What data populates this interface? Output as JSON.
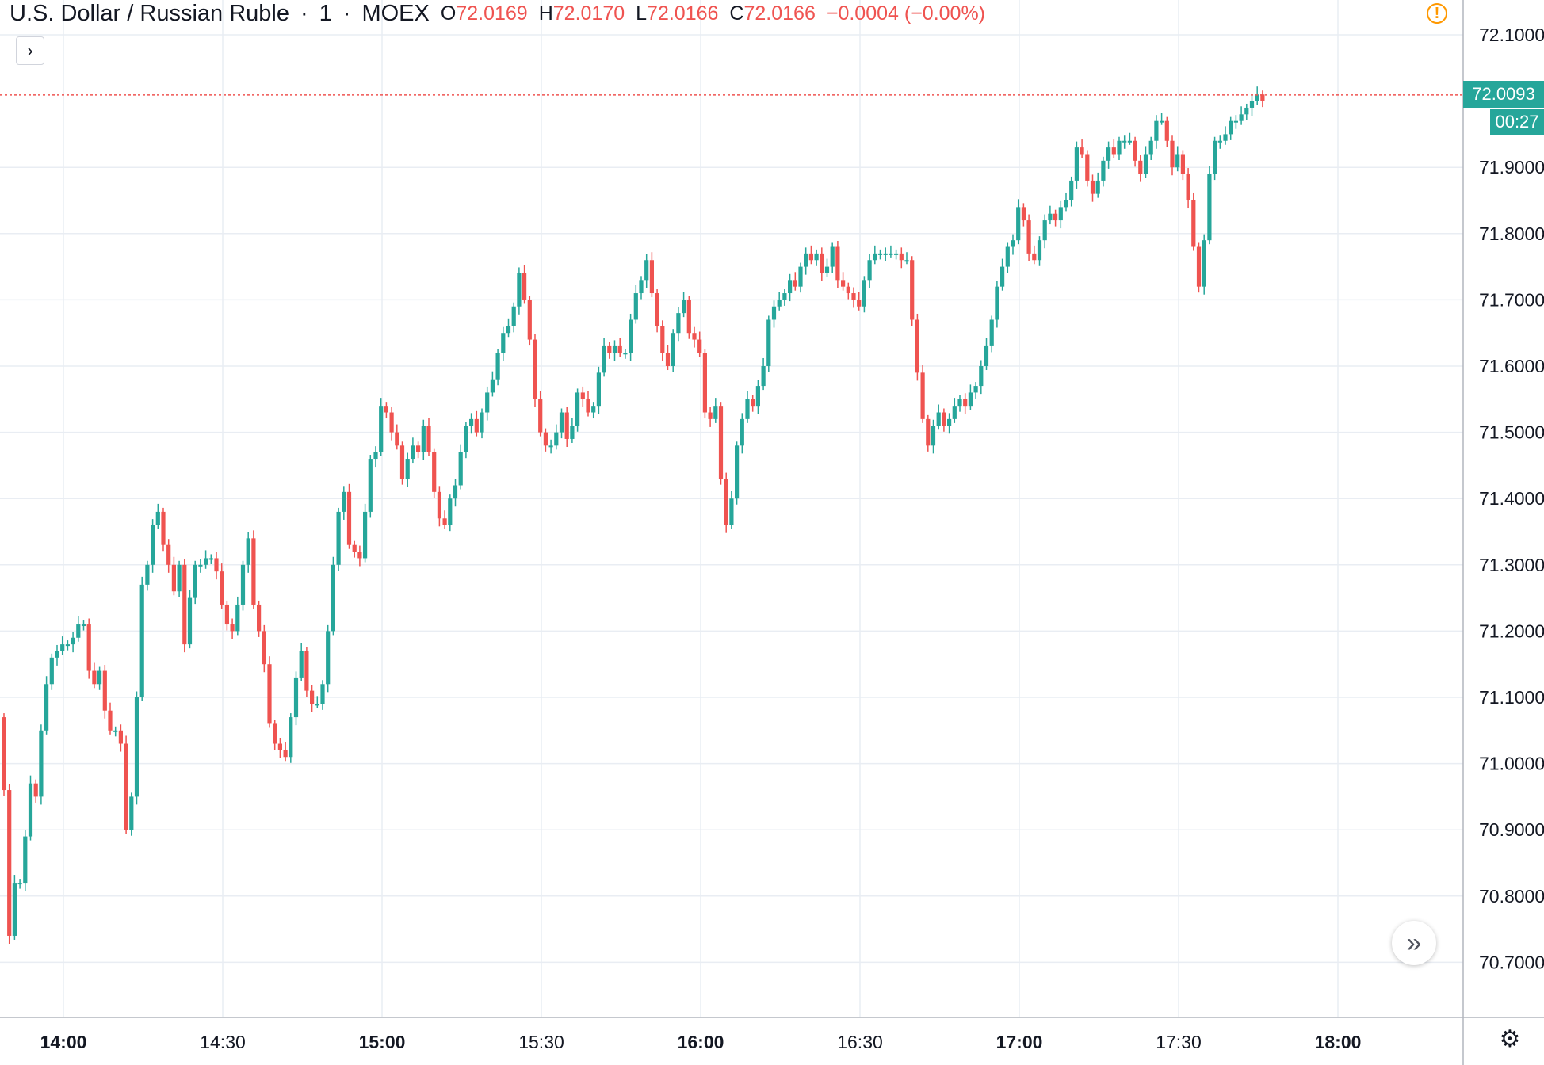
{
  "legend": {
    "symbol": "U.S. Dollar / Russian Ruble",
    "interval": "1",
    "exchange": "MOEX",
    "open_label": "O",
    "open": "72.0169",
    "high_label": "H",
    "high": "72.0170",
    "low_label": "L",
    "low": "72.0166",
    "close_label": "C",
    "close": "72.0166",
    "change": "−0.0004 (−0.00%)"
  },
  "price_badge": {
    "last": "72.0093",
    "countdown": "00:27"
  },
  "colors": {
    "up": "#26a69a",
    "down": "#ef5350",
    "grid": "#e9edf3",
    "axis_text": "#131722",
    "badge": "#26a69a"
  },
  "icons": {
    "expand": "chevron-right-icon",
    "warning": "warning-icon",
    "scroll": "double-chevron-right-icon",
    "settings": "gear-icon"
  },
  "chart_data": {
    "type": "candlestick",
    "ylim": [
      70.62,
      72.14
    ],
    "yticks": [
      "72.1000",
      "71.9000",
      "71.8000",
      "71.7000",
      "71.6000",
      "71.5000",
      "71.4000",
      "71.3000",
      "71.2000",
      "71.1000",
      "71.0000",
      "70.9000",
      "70.8000",
      "70.7000"
    ],
    "xticks": [
      "14:00",
      "14:30",
      "15:00",
      "15:30",
      "16:00",
      "16:30",
      "17:00",
      "17:30",
      "18:00"
    ],
    "last_price": 72.0093,
    "closes": [
      70.96,
      70.74,
      70.82,
      70.82,
      70.89,
      70.97,
      70.95,
      71.05,
      71.12,
      71.16,
      71.17,
      71.18,
      71.18,
      71.19,
      71.21,
      71.21,
      71.14,
      71.12,
      71.14,
      71.08,
      71.05,
      71.05,
      71.03,
      70.9,
      70.95,
      71.1,
      71.27,
      71.3,
      71.36,
      71.38,
      71.33,
      71.3,
      71.26,
      71.3,
      71.18,
      71.25,
      71.3,
      71.3,
      71.31,
      71.31,
      71.29,
      71.24,
      71.21,
      71.2,
      71.24,
      71.3,
      71.34,
      71.24,
      71.2,
      71.15,
      71.06,
      71.03,
      71.02,
      71.01,
      71.07,
      71.13,
      71.17,
      71.11,
      71.09,
      71.09,
      71.12,
      71.2,
      71.3,
      71.38,
      71.41,
      71.33,
      71.32,
      71.31,
      71.38,
      71.46,
      71.47,
      71.54,
      71.53,
      71.5,
      71.48,
      71.43,
      71.46,
      71.48,
      71.47,
      71.51,
      71.47,
      71.41,
      71.37,
      71.36,
      71.4,
      71.42,
      71.47,
      71.51,
      71.52,
      71.5,
      71.53,
      71.56,
      71.58,
      71.62,
      71.65,
      71.66,
      71.69,
      71.74,
      71.7,
      71.64,
      71.55,
      71.5,
      71.48,
      71.48,
      71.5,
      71.53,
      71.49,
      71.51,
      71.56,
      71.55,
      71.53,
      71.54,
      71.59,
      71.63,
      71.62,
      71.63,
      71.62,
      71.62,
      71.67,
      71.71,
      71.73,
      71.76,
      71.71,
      71.66,
      71.62,
      71.6,
      71.65,
      71.68,
      71.7,
      71.65,
      71.64,
      71.62,
      71.53,
      71.52,
      71.54,
      71.43,
      71.36,
      71.4,
      71.48,
      71.52,
      71.55,
      71.54,
      71.57,
      71.6,
      71.67,
      71.69,
      71.7,
      71.71,
      71.73,
      71.72,
      71.75,
      71.77,
      71.76,
      71.77,
      71.74,
      71.75,
      71.78,
      71.73,
      71.72,
      71.71,
      71.7,
      71.69,
      71.73,
      71.76,
      71.77,
      71.77,
      71.77,
      71.77,
      71.77,
      71.76,
      71.76,
      71.67,
      71.59,
      71.52,
      71.48,
      71.51,
      71.53,
      71.51,
      71.52,
      71.54,
      71.55,
      71.54,
      71.56,
      71.57,
      71.6,
      71.63,
      71.67,
      71.72,
      71.75,
      71.78,
      71.79,
      71.84,
      71.82,
      71.77,
      71.76,
      71.79,
      71.82,
      71.83,
      71.82,
      71.84,
      71.85,
      71.88,
      71.93,
      71.92,
      71.88,
      71.86,
      71.88,
      71.91,
      71.93,
      71.92,
      71.94,
      71.94,
      71.94,
      71.91,
      71.89,
      71.92,
      71.94,
      71.97,
      71.97,
      71.94,
      71.9,
      71.92,
      71.89,
      71.85,
      71.78,
      71.72,
      71.79,
      71.89,
      71.94,
      71.94,
      71.95,
      71.97,
      71.97,
      71.98,
      71.99,
      72.0,
      72.01,
      72.0
    ]
  }
}
